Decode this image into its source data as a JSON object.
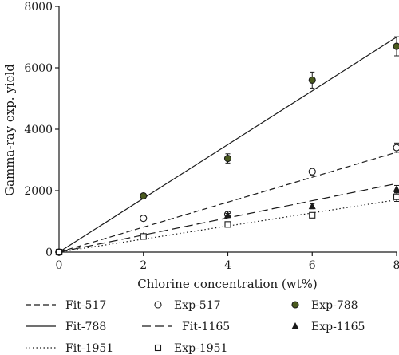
{
  "chart_data": {
    "type": "scatter",
    "title": "",
    "xlabel": "Chlorine concentration (wt%)",
    "ylabel": "Gamma-ray exp. yield",
    "xlim": [
      0,
      8
    ],
    "ylim": [
      0,
      8000
    ],
    "xticks": [
      "0",
      "2",
      "4",
      "6",
      "8"
    ],
    "yticks": [
      "0",
      "2000",
      "4000",
      "6000",
      "8000"
    ],
    "grid": false,
    "legend_placement": "bottom",
    "series": [
      {
        "name": "Fit-517",
        "kind": "line",
        "style": "dashed",
        "x": [
          0,
          8
        ],
        "y": [
          0,
          3250
        ]
      },
      {
        "name": "Exp-517",
        "kind": "points",
        "marker": "open-circle",
        "x": [
          0,
          2,
          4,
          6,
          8
        ],
        "y": [
          0,
          1100,
          1230,
          2620,
          3400
        ],
        "err": [
          0,
          70,
          80,
          110,
          150
        ]
      },
      {
        "name": "Exp-788",
        "kind": "points",
        "marker": "filled-circle",
        "x": [
          0,
          2,
          4,
          6,
          8
        ],
        "y": [
          0,
          1830,
          3050,
          5600,
          6700
        ],
        "err": [
          0,
          80,
          150,
          260,
          310
        ]
      },
      {
        "name": "Fit-788",
        "kind": "line",
        "style": "solid",
        "x": [
          0,
          8
        ],
        "y": [
          0,
          7000
        ]
      },
      {
        "name": "Fit-1165",
        "kind": "line",
        "style": "long-dashed",
        "x": [
          0,
          8
        ],
        "y": [
          0,
          2230
        ]
      },
      {
        "name": "Exp-1165",
        "kind": "points",
        "marker": "filled-triangle",
        "x": [
          0,
          2,
          4,
          6,
          8
        ],
        "y": [
          0,
          520,
          1200,
          1490,
          2050
        ],
        "err": [
          0,
          40,
          60,
          80,
          120
        ]
      },
      {
        "name": "Fit-1951",
        "kind": "line",
        "style": "dotted",
        "x": [
          0,
          8
        ],
        "y": [
          0,
          1700
        ]
      },
      {
        "name": "Exp-1951",
        "kind": "points",
        "marker": "open-square",
        "x": [
          0,
          2,
          4,
          6,
          8
        ],
        "y": [
          0,
          510,
          900,
          1200,
          1800
        ],
        "err": [
          0,
          40,
          60,
          80,
          150
        ]
      }
    ]
  },
  "colors": {
    "ink": "#1a1a1a",
    "marker_788_fill": "#4a5a1e",
    "background": "#ffffff"
  }
}
